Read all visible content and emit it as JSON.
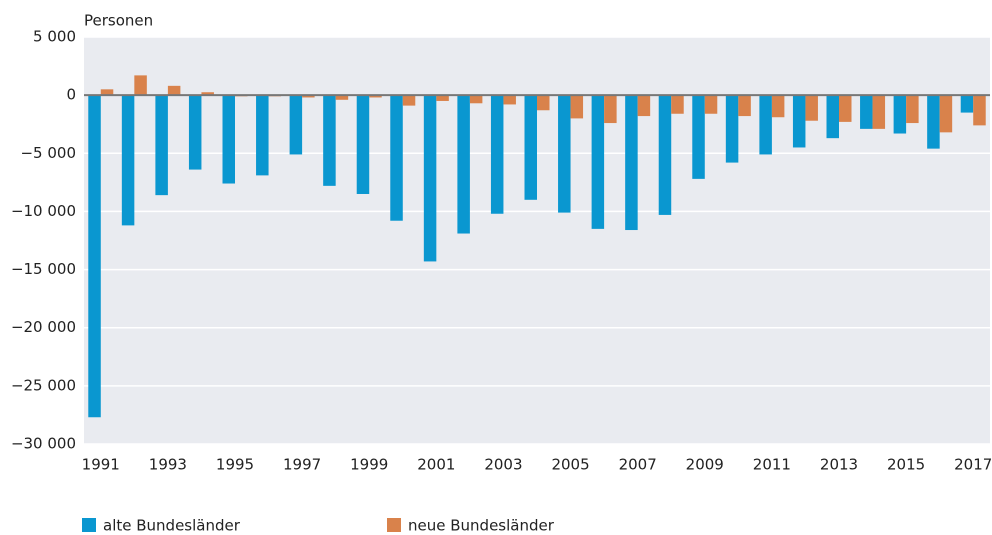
{
  "chart_data": {
    "type": "bar",
    "y_label": "Personen",
    "categories": [
      "1991",
      null,
      "1993",
      null,
      "1995",
      null,
      "1997",
      null,
      "1999",
      null,
      "2001",
      null,
      "2003",
      null,
      "2005",
      null,
      "2007",
      null,
      "2009",
      null,
      "2011",
      null,
      "2013",
      null,
      "2015",
      null,
      "2017"
    ],
    "series": [
      {
        "name": "alte Bundesländer",
        "color": "#0a97d0",
        "values": [
          -27700,
          -11200,
          -8600,
          -6400,
          -7600,
          -6900,
          -5100,
          -7800,
          -8500,
          -10800,
          -14300,
          -11900,
          -10200,
          -9000,
          -10100,
          -11500,
          -11600,
          -10300,
          -7200,
          -5800,
          -5100,
          -4500,
          -3700,
          -2900,
          -3300,
          -4600,
          -1500
        ]
      },
      {
        "name": "neue Bundesländer",
        "color": "#d9824b",
        "values": [
          500,
          1700,
          800,
          250,
          -100,
          -100,
          -200,
          -400,
          -200,
          -900,
          -500,
          -700,
          -800,
          -1300,
          -2000,
          -2400,
          -1800,
          -1600,
          -1600,
          -1800,
          -1900,
          -2200,
          -2300,
          -2900,
          -2400,
          -3200,
          -2600
        ]
      }
    ],
    "ylim": [
      -30000,
      5000
    ],
    "yticks": [
      {
        "value": 5000,
        "label": "5 000"
      },
      0,
      {
        "value": -5000,
        "label": "−5 000"
      },
      {
        "value": -10000,
        "label": "−10 000"
      },
      {
        "value": -15000,
        "label": "−15 000"
      },
      {
        "value": -20000,
        "label": "−20 000"
      },
      {
        "value": -25000,
        "label": "−25 000"
      },
      {
        "value": -30000,
        "label": "−30 000"
      }
    ],
    "grid": true,
    "legend": "bottom"
  }
}
